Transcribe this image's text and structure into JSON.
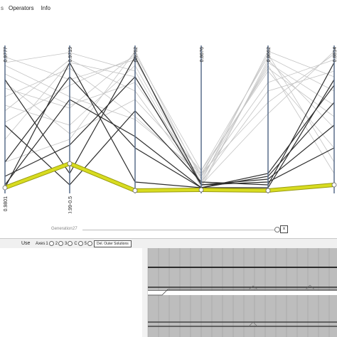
{
  "menu": {
    "items": [
      "Operators",
      "Info"
    ]
  },
  "axes": [
    {
      "top_label": "0.9777",
      "bottom_label": "0.9801"
    },
    {
      "top_label": "0.9715",
      "bottom_label": "0.99-0.5"
    },
    {
      "top_label": "0.9762",
      "bottom_label": ""
    },
    {
      "top_label": "0.8676",
      "bottom_label": ""
    },
    {
      "top_label": "0.8662",
      "bottom_label": ""
    },
    {
      "top_label": "0.8814",
      "bottom_label": ""
    }
  ],
  "generation": {
    "label": "Generation",
    "value": "27",
    "close_label": "x"
  },
  "toolbar": {
    "use_label": "Use",
    "axes_label": "Axes",
    "axis_options": [
      "1",
      "2",
      "3",
      "C",
      "5"
    ],
    "delete_button": "Del. Outer Solutions"
  },
  "colors": {
    "highlight": "#d8dc20",
    "highlight_stroke": "#9a9c10",
    "axis": "#5a6e8c",
    "light_line": "#c4c4c4",
    "dark_line": "#2e2e2e",
    "grid_cell": "#bdbdbd"
  }
}
